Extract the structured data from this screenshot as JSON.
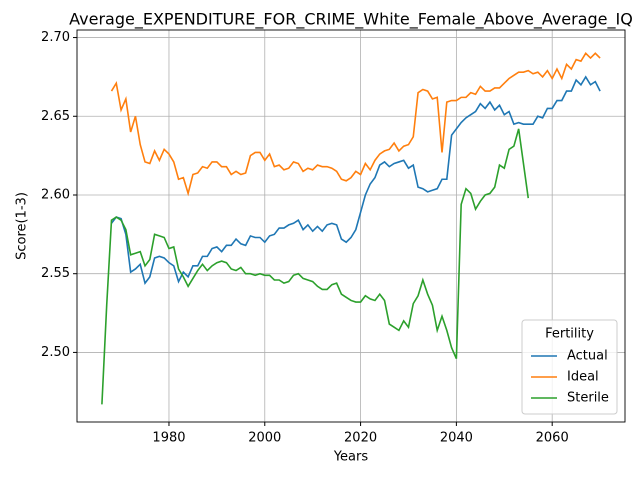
{
  "chart_data": {
    "type": "line",
    "title": "Average_EXPENDITURE_FOR_CRIME_White_Female_Above_Average_IQ",
    "xlabel": "Years",
    "ylabel": "Score(1-3)",
    "xlim": [
      1960.8,
      2075.2
    ],
    "xticks": [
      1980,
      2000,
      2020,
      2040,
      2060
    ],
    "ylim": [
      2.4558,
      2.7048
    ],
    "yticks": [
      {
        "value": 2.5,
        "label": "2.50"
      },
      2.55,
      {
        "value": 2.6,
        "label": "2.60"
      },
      2.65,
      {
        "value": 2.7,
        "label": "2.70"
      }
    ],
    "grid": true,
    "legend_title": "Fertility",
    "legend_loc": "lower right",
    "series": [
      {
        "name": "Actual",
        "color": "#1f77b4",
        "x": [
          1968,
          1969,
          1970,
          1971,
          1972,
          1973,
          1974,
          1975,
          1976,
          1977,
          1978,
          1979,
          1980,
          1981,
          1982,
          1983,
          1984,
          1985,
          1986,
          1987,
          1988,
          1989,
          1990,
          1991,
          1992,
          1993,
          1994,
          1995,
          1996,
          1997,
          1998,
          1999,
          2000,
          2001,
          2002,
          2003,
          2004,
          2005,
          2006,
          2007,
          2008,
          2009,
          2010,
          2011,
          2012,
          2013,
          2014,
          2015,
          2016,
          2017,
          2018,
          2019,
          2020,
          2021,
          2022,
          2023,
          2024,
          2025,
          2026,
          2027,
          2028,
          2029,
          2030,
          2031,
          2032,
          2033,
          2034,
          2035,
          2036,
          2037,
          2038,
          2039,
          2040,
          2041,
          2042,
          2043,
          2044,
          2045,
          2046,
          2047,
          2048,
          2049,
          2050,
          2051,
          2052,
          2053,
          2054,
          2055,
          2056,
          2057,
          2058,
          2059,
          2060,
          2061,
          2062,
          2063,
          2064,
          2065,
          2066,
          2067,
          2068,
          2069,
          2070
        ],
        "values": [
          2.582,
          2.586,
          2.585,
          2.575,
          2.551,
          2.553,
          2.556,
          2.544,
          2.548,
          2.56,
          2.561,
          2.56,
          2.557,
          2.555,
          2.545,
          2.551,
          2.548,
          2.555,
          2.555,
          2.561,
          2.561,
          2.566,
          2.567,
          2.564,
          2.568,
          2.568,
          2.572,
          2.569,
          2.568,
          2.574,
          2.573,
          2.573,
          2.57,
          2.574,
          2.575,
          2.579,
          2.579,
          2.581,
          2.582,
          2.584,
          2.578,
          2.581,
          2.577,
          2.58,
          2.577,
          2.581,
          2.582,
          2.581,
          2.572,
          2.57,
          2.573,
          2.578,
          2.589,
          2.6,
          2.607,
          2.611,
          2.619,
          2.621,
          2.618,
          2.62,
          2.621,
          2.622,
          2.617,
          2.619,
          2.605,
          2.604,
          2.602,
          2.603,
          2.604,
          2.61,
          2.61,
          2.638,
          2.642,
          2.646,
          2.649,
          2.651,
          2.653,
          2.658,
          2.655,
          2.659,
          2.654,
          2.657,
          2.651,
          2.653,
          2.645,
          2.646,
          2.645,
          2.645,
          2.645,
          2.65,
          2.649,
          2.655,
          2.655,
          2.66,
          2.66,
          2.666,
          2.666,
          2.673,
          2.67,
          2.675,
          2.67,
          2.672,
          2.666
        ]
      },
      {
        "name": "Ideal",
        "color": "#ff7f0e",
        "x": [
          1968,
          1969,
          1970,
          1971,
          1972,
          1973,
          1974,
          1975,
          1976,
          1977,
          1978,
          1979,
          1980,
          1981,
          1982,
          1983,
          1984,
          1985,
          1986,
          1987,
          1988,
          1989,
          1990,
          1991,
          1992,
          1993,
          1994,
          1995,
          1996,
          1997,
          1998,
          1999,
          2000,
          2001,
          2002,
          2003,
          2004,
          2005,
          2006,
          2007,
          2008,
          2009,
          2010,
          2011,
          2012,
          2013,
          2014,
          2015,
          2016,
          2017,
          2018,
          2019,
          2020,
          2021,
          2022,
          2023,
          2024,
          2025,
          2026,
          2027,
          2028,
          2029,
          2030,
          2031,
          2032,
          2033,
          2034,
          2035,
          2036,
          2037,
          2038,
          2039,
          2040,
          2041,
          2042,
          2043,
          2044,
          2045,
          2046,
          2047,
          2048,
          2049,
          2050,
          2051,
          2052,
          2053,
          2054,
          2055,
          2056,
          2057,
          2058,
          2059,
          2060,
          2061,
          2062,
          2063,
          2064,
          2065,
          2066,
          2067,
          2068,
          2069,
          2070
        ],
        "values": [
          2.666,
          2.671,
          2.654,
          2.661,
          2.64,
          2.65,
          2.632,
          2.621,
          2.62,
          2.628,
          2.622,
          2.629,
          2.626,
          2.621,
          2.61,
          2.611,
          2.601,
          2.613,
          2.614,
          2.618,
          2.617,
          2.621,
          2.621,
          2.618,
          2.618,
          2.613,
          2.615,
          2.613,
          2.614,
          2.625,
          2.627,
          2.627,
          2.622,
          2.626,
          2.618,
          2.619,
          2.616,
          2.617,
          2.621,
          2.62,
          2.615,
          2.617,
          2.616,
          2.619,
          2.618,
          2.618,
          2.617,
          2.615,
          2.61,
          2.609,
          2.611,
          2.615,
          2.613,
          2.62,
          2.616,
          2.622,
          2.626,
          2.628,
          2.629,
          2.633,
          2.628,
          2.631,
          2.632,
          2.637,
          2.665,
          2.667,
          2.666,
          2.661,
          2.662,
          2.627,
          2.659,
          2.66,
          2.66,
          2.662,
          2.662,
          2.665,
          2.664,
          2.669,
          2.666,
          2.666,
          2.668,
          2.668,
          2.671,
          2.674,
          2.676,
          2.678,
          2.678,
          2.679,
          2.677,
          2.678,
          2.675,
          2.679,
          2.674,
          2.68,
          2.674,
          2.683,
          2.68,
          2.686,
          2.685,
          2.69,
          2.687,
          2.69,
          2.687
        ]
      },
      {
        "name": "Sterile",
        "color": "#2ca02c",
        "x": [
          1966,
          1967,
          1968,
          1969,
          1970,
          1971,
          1972,
          1973,
          1974,
          1975,
          1976,
          1977,
          1978,
          1979,
          1980,
          1981,
          1982,
          1983,
          1984,
          1985,
          1986,
          1987,
          1988,
          1989,
          1990,
          1991,
          1992,
          1993,
          1994,
          1995,
          1996,
          1997,
          1998,
          1999,
          2000,
          2001,
          2002,
          2003,
          2004,
          2005,
          2006,
          2007,
          2008,
          2009,
          2010,
          2011,
          2012,
          2013,
          2014,
          2015,
          2016,
          2017,
          2018,
          2019,
          2020,
          2021,
          2022,
          2023,
          2024,
          2025,
          2026,
          2027,
          2028,
          2029,
          2030,
          2031,
          2032,
          2033,
          2034,
          2035,
          2036,
          2037,
          2038,
          2039,
          2040,
          2041,
          2042,
          2043,
          2044,
          2045,
          2046,
          2047,
          2048,
          2049,
          2050,
          2051,
          2052,
          2053,
          2054,
          2055
        ],
        "values": [
          2.467,
          2.53,
          2.584,
          2.586,
          2.584,
          2.578,
          2.562,
          2.563,
          2.564,
          2.555,
          2.559,
          2.575,
          2.574,
          2.573,
          2.566,
          2.567,
          2.553,
          2.548,
          2.542,
          2.547,
          2.552,
          2.556,
          2.552,
          2.555,
          2.557,
          2.558,
          2.557,
          2.553,
          2.552,
          2.554,
          2.55,
          2.55,
          2.549,
          2.55,
          2.549,
          2.549,
          2.546,
          2.546,
          2.544,
          2.545,
          2.549,
          2.55,
          2.547,
          2.546,
          2.545,
          2.542,
          2.54,
          2.54,
          2.543,
          2.544,
          2.537,
          2.535,
          2.533,
          2.532,
          2.532,
          2.536,
          2.534,
          2.533,
          2.537,
          2.533,
          2.518,
          2.516,
          2.514,
          2.52,
          2.516,
          2.531,
          2.536,
          2.546,
          2.537,
          2.53,
          2.514,
          2.523,
          2.514,
          2.503,
          2.496,
          2.594,
          2.604,
          2.601,
          2.591,
          2.596,
          2.6,
          2.601,
          2.605,
          2.619,
          2.617,
          2.629,
          2.631,
          2.642,
          2.62,
          2.598
        ]
      }
    ]
  }
}
